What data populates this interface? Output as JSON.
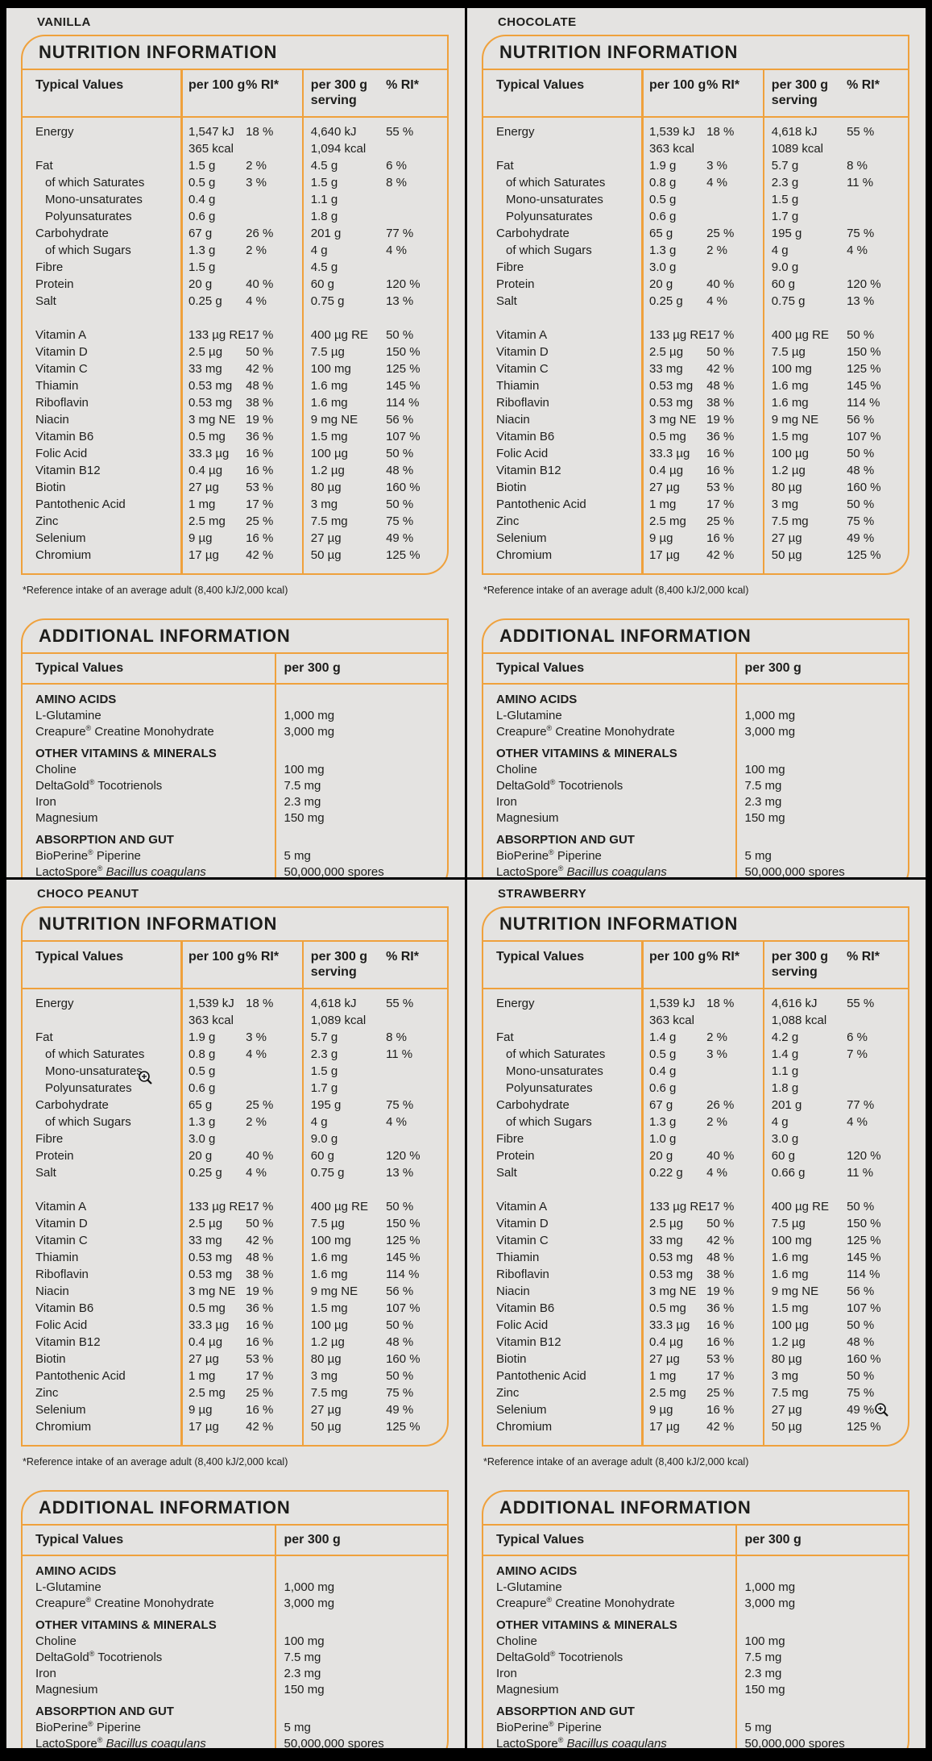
{
  "colors": {
    "accent_orange": "#EFA13C",
    "panel_background": "#E4E3E1",
    "text": "#1D1D1B",
    "frame": "#000000"
  },
  "shared": {
    "nutrition_title": "NUTRITION INFORMATION",
    "additional_title": "ADDITIONAL INFORMATION",
    "typical_values": "Typical Values",
    "per100": "per 100 g",
    "ri": "% RI*",
    "per300_line1": "per 300 g",
    "per300_line2": "serving",
    "per300_add": "per 300 g",
    "reg": "®",
    "footnote": "*Reference intake of an average adult (8,400 kJ/2,000 kcal)",
    "vitamins": [
      {
        "label": "Vitamin A",
        "per100": "133 µg RE",
        "ri100": "17 %",
        "per300": "400 µg RE",
        "ri300": "50 %"
      },
      {
        "label": "Vitamin D",
        "per100": "2.5 µg",
        "ri100": "50 %",
        "per300": "7.5 µg",
        "ri300": "150 %"
      },
      {
        "label": "Vitamin C",
        "per100": "33 mg",
        "ri100": "42 %",
        "per300": "100 mg",
        "ri300": "125 %"
      },
      {
        "label": "Thiamin",
        "per100": "0.53 mg",
        "ri100": "48 %",
        "per300": "1.6 mg",
        "ri300": "145 %"
      },
      {
        "label": "Riboflavin",
        "per100": "0.53 mg",
        "ri100": "38 %",
        "per300": "1.6 mg",
        "ri300": "114 %"
      },
      {
        "label": "Niacin",
        "per100": "3 mg NE",
        "ri100": "19 %",
        "per300": "9 mg NE",
        "ri300": "56 %"
      },
      {
        "label": "Vitamin B6",
        "per100": "0.5 mg",
        "ri100": "36 %",
        "per300": "1.5 mg",
        "ri300": "107 %"
      },
      {
        "label": "Folic Acid",
        "per100": "33.3 µg",
        "ri100": "16 %",
        "per300": "100 µg",
        "ri300": "50 %"
      },
      {
        "label": "Vitamin B12",
        "per100": "0.4 µg",
        "ri100": "16 %",
        "per300": "1.2 µg",
        "ri300": "48 %"
      },
      {
        "label": "Biotin",
        "per100": "27 µg",
        "ri100": "53 %",
        "per300": "80 µg",
        "ri300": "160 %"
      },
      {
        "label": "Pantothenic Acid",
        "per100": "1 mg",
        "ri100": "17 %",
        "per300": "3 mg",
        "ri300": "50 %"
      },
      {
        "label": "Zinc",
        "per100": "2.5 mg",
        "ri100": "25 %",
        "per300": "7.5 mg",
        "ri300": "75 %"
      },
      {
        "label": "Selenium",
        "per100": "9 µg",
        "ri100": "16 %",
        "per300": "27 µg",
        "ri300": "49 %"
      },
      {
        "label": "Chromium",
        "per100": "17 µg",
        "ri100": "42 %",
        "per300": "50 µg",
        "ri300": "125 %"
      }
    ],
    "additional": {
      "sections": [
        {
          "heading": "AMINO ACIDS",
          "rows": [
            {
              "label": "L-Glutamine",
              "value": "1,000 mg"
            },
            {
              "brand": "Creapure",
              "rest": " Creatine Monohydrate",
              "value": "3,000 mg"
            }
          ]
        },
        {
          "heading": "OTHER VITAMINS & MINERALS",
          "rows": [
            {
              "label": "Choline",
              "value": "100 mg"
            },
            {
              "brand": "DeltaGold",
              "rest": " Tocotrienols",
              "value": "7.5 mg"
            },
            {
              "label": "Iron",
              "value": "2.3 mg"
            },
            {
              "label": "Magnesium",
              "value": "150 mg"
            }
          ]
        },
        {
          "heading": "ABSORPTION AND GUT",
          "rows": [
            {
              "brand": "BioPerine",
              "rest": " Piperine",
              "value": "5 mg"
            },
            {
              "brand": "LactoSpore",
              "rest": " Bacillus coagulans",
              "rest_italic": true,
              "value": "50,000,000 spores"
            }
          ]
        }
      ]
    }
  },
  "panels": [
    {
      "flavor": "VANILLA",
      "macros": [
        {
          "label": "Energy",
          "per100": "1,547 kJ",
          "per100b": "365 kcal",
          "ri100": "18 %",
          "per300": "4,640 kJ",
          "per300b": "1,094 kcal",
          "ri300": "55 %"
        },
        {
          "label": "Fat",
          "per100": "1.5 g",
          "ri100": "2 %",
          "per300": "4.5 g",
          "ri300": "6 %"
        },
        {
          "label": "of which Saturates",
          "indent": 1,
          "per100": "0.5 g",
          "ri100": "3 %",
          "per300": "1.5 g",
          "ri300": "8 %"
        },
        {
          "label": "Mono-unsaturates",
          "indent": 1,
          "per100": "0.4 g",
          "per300": "1.1 g"
        },
        {
          "label": "Polyunsaturates",
          "indent": 1,
          "per100": "0.6 g",
          "per300": "1.8 g"
        },
        {
          "label": "Carbohydrate",
          "per100": "67 g",
          "ri100": "26 %",
          "per300": "201 g",
          "ri300": "77 %"
        },
        {
          "label": "of which Sugars",
          "indent": 1,
          "per100": "1.3 g",
          "ri100": "2 %",
          "per300": "4 g",
          "ri300": "4 %"
        },
        {
          "label": "Fibre",
          "per100": "1.5 g",
          "per300": "4.5 g"
        },
        {
          "label": "Protein",
          "per100": "20 g",
          "ri100": "40 %",
          "per300": "60 g",
          "ri300": "120 %"
        },
        {
          "label": "Salt",
          "per100": "0.25 g",
          "ri100": "4 %",
          "per300": "0.75 g",
          "ri300": "13 %"
        }
      ]
    },
    {
      "flavor": "CHOCOLATE",
      "macros": [
        {
          "label": "Energy",
          "per100": "1,539 kJ",
          "per100b": "363 kcal",
          "ri100": "18 %",
          "per300": "4,618 kJ",
          "per300b": "1089 kcal",
          "ri300": "55 %"
        },
        {
          "label": "Fat",
          "per100": "1.9 g",
          "ri100": "3 %",
          "per300": "5.7 g",
          "ri300": "8 %"
        },
        {
          "label": "of which Saturates",
          "indent": 1,
          "per100": "0.8 g",
          "ri100": "4 %",
          "per300": "2.3 g",
          "ri300": "11 %"
        },
        {
          "label": "Mono-unsaturates",
          "indent": 1,
          "per100": "0.5 g",
          "per300": "1.5 g"
        },
        {
          "label": "Polyunsaturates",
          "indent": 1,
          "per100": "0.6 g",
          "per300": "1.7 g"
        },
        {
          "label": "Carbohydrate",
          "per100": "65 g",
          "ri100": "25 %",
          "per300": "195 g",
          "ri300": "75 %"
        },
        {
          "label": "of which Sugars",
          "indent": 1,
          "per100": "1.3 g",
          "ri100": "2 %",
          "per300": "4 g",
          "ri300": "4 %"
        },
        {
          "label": "Fibre",
          "per100": "3.0 g",
          "per300": "9.0 g"
        },
        {
          "label": "Protein",
          "per100": "20 g",
          "ri100": "40 %",
          "per300": "60 g",
          "ri300": "120 %"
        },
        {
          "label": "Salt",
          "per100": "0.25 g",
          "ri100": "4 %",
          "per300": "0.75 g",
          "ri300": "13 %"
        }
      ]
    },
    {
      "flavor": "CHOCO PEANUT",
      "macros": [
        {
          "label": "Energy",
          "per100": "1,539 kJ",
          "per100b": "363 kcal",
          "ri100": "18 %",
          "per300": "4,618 kJ",
          "per300b": "1,089 kcal",
          "ri300": "55 %"
        },
        {
          "label": "Fat",
          "per100": "1.9 g",
          "ri100": "3 %",
          "per300": "5.7 g",
          "ri300": "8 %"
        },
        {
          "label": "of which Saturates",
          "indent": 1,
          "per100": "0.8 g",
          "ri100": "4 %",
          "per300": "2.3 g",
          "ri300": "11 %"
        },
        {
          "label": "Mono-unsaturates",
          "indent": 1,
          "per100": "0.5 g",
          "per300": "1.5 g"
        },
        {
          "label": "Polyunsaturates",
          "indent": 1,
          "per100": "0.6 g",
          "per300": "1.7 g"
        },
        {
          "label": "Carbohydrate",
          "per100": "65 g",
          "ri100": "25 %",
          "per300": "195 g",
          "ri300": "75 %"
        },
        {
          "label": "of which Sugars",
          "indent": 1,
          "per100": "1.3 g",
          "ri100": "2 %",
          "per300": "4 g",
          "ri300": "4 %"
        },
        {
          "label": "Fibre",
          "per100": "3.0 g",
          "per300": "9.0 g"
        },
        {
          "label": "Protein",
          "per100": "20 g",
          "ri100": "40 %",
          "per300": "60 g",
          "ri300": "120 %"
        },
        {
          "label": "Salt",
          "per100": "0.25 g",
          "ri100": "4 %",
          "per300": "0.75 g",
          "ri300": "13 %"
        }
      ]
    },
    {
      "flavor": "STRAWBERRY",
      "macros": [
        {
          "label": "Energy",
          "per100": "1,539 kJ",
          "per100b": "363 kcal",
          "ri100": "18 %",
          "per300": "4,616 kJ",
          "per300b": "1,088 kcal",
          "ri300": "55 %"
        },
        {
          "label": "Fat",
          "per100": "1.4 g",
          "ri100": "2 %",
          "per300": "4.2 g",
          "ri300": "6 %"
        },
        {
          "label": "of which Saturates",
          "indent": 1,
          "per100": "0.5 g",
          "ri100": "3 %",
          "per300": "1.4 g",
          "ri300": "7 %"
        },
        {
          "label": "Mono-unsaturates",
          "indent": 1,
          "per100": "0.4 g",
          "per300": "1.1 g"
        },
        {
          "label": "Polyunsaturates",
          "indent": 1,
          "per100": "0.6 g",
          "per300": "1.8 g"
        },
        {
          "label": "Carbohydrate",
          "per100": "67 g",
          "ri100": "26 %",
          "per300": "201 g",
          "ri300": "77 %"
        },
        {
          "label": "of which Sugars",
          "indent": 1,
          "per100": "1.3 g",
          "ri100": "2 %",
          "per300": "4 g",
          "ri300": "4 %"
        },
        {
          "label": "Fibre",
          "per100": "1.0 g",
          "per300": "3.0 g"
        },
        {
          "label": "Protein",
          "per100": "20 g",
          "ri100": "40 %",
          "per300": "60 g",
          "ri300": "120 %"
        },
        {
          "label": "Salt",
          "per100": "0.22 g",
          "ri100": "4 %",
          "per300": "0.66 g",
          "ri300": "11 %"
        }
      ]
    }
  ]
}
